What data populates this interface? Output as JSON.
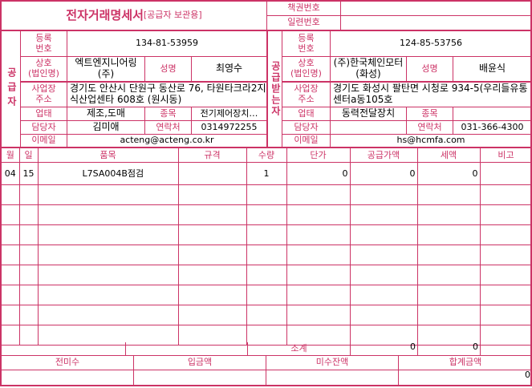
{
  "title": {
    "main": "전자거래명세서",
    "sub": "[공급자 보관용]"
  },
  "meta": {
    "book_label": "책권번호",
    "book_value": "",
    "serial_label": "일련번호",
    "serial_value": ""
  },
  "labels": {
    "reg_no": "등록\n번호",
    "company": "상호\n(법인명)",
    "ceo": "성명",
    "address": "사업장\n주소",
    "biz_type": "업태",
    "biz_item": "종목",
    "contact": "담당자",
    "phone": "연락처",
    "email": "이메일"
  },
  "supplier": {
    "section_label": "공급자",
    "reg_no": "134-81-53959",
    "company": "엑트엔지니어링(주)",
    "ceo": "최영수",
    "address": "경기도 안산시 단원구 동산로 76, 타원타크라2지식산업센타   608호 (원시동)",
    "biz_type": "제조,도매",
    "biz_item": "전기제어장치…",
    "contact": "김미애",
    "phone": "0314972255",
    "email": "acteng@acteng.co.kr"
  },
  "receiver": {
    "section_label": "공급받는자",
    "reg_no": "124-85-53756",
    "company": "(주)한국체인모터(화성)",
    "ceo": "배윤식",
    "address": "경기도 화성시 팔탄면 시청로 934-5(우리들유통센터a동105호",
    "biz_type": "동력전달장치",
    "biz_item": "",
    "contact": "",
    "phone": "031-366-4300",
    "email": "hs@hcmfa.com"
  },
  "items_table": {
    "headers": [
      "월",
      "일",
      "품목",
      "규격",
      "수량",
      "단가",
      "공급가액",
      "세액",
      "비고"
    ],
    "rows": [
      [
        "04",
        "15",
        "L7SA004B점검",
        "",
        "1",
        "0",
        "0",
        "0",
        ""
      ]
    ]
  },
  "subtotal": {
    "label": "소계",
    "supply": "0",
    "tax": "0"
  },
  "summary": {
    "headers": [
      "전미수",
      "입금액",
      "미수잔액",
      "합계금액"
    ],
    "values": [
      "",
      "",
      "",
      "0"
    ]
  },
  "colors": {
    "accent": "#cc3366"
  }
}
